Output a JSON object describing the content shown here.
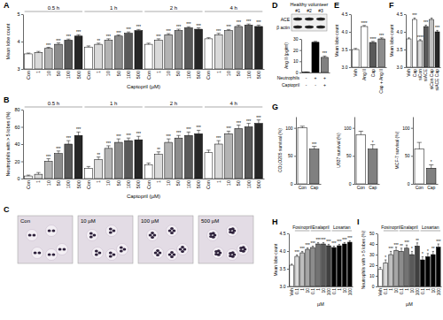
{
  "chart_data": [
    {
      "type": "bar",
      "panel": "A",
      "y_label": "Mean lobe count",
      "x_label": "Captopril (µM)",
      "categories": [
        "Con",
        "1",
        "10",
        "50",
        "100",
        "500",
        "Con",
        "1",
        "10",
        "50",
        "100",
        "500",
        "Con",
        "1",
        "10",
        "50",
        "100",
        "500",
        "Con",
        "1",
        "10",
        "50",
        "100",
        "500"
      ],
      "groups": [
        "0.5 h",
        "0.5 h",
        "0.5 h",
        "0.5 h",
        "0.5 h",
        "0.5 h",
        "1 h",
        "1 h",
        "1 h",
        "1 h",
        "1 h",
        "1 h",
        "2 h",
        "2 h",
        "2 h",
        "2 h",
        "2 h",
        "2 h",
        "4 h",
        "4 h",
        "4 h",
        "4 h",
        "4 h",
        "4 h"
      ],
      "values": [
        3.55,
        3.6,
        3.75,
        3.9,
        4.05,
        4.2,
        3.8,
        3.9,
        4.05,
        4.2,
        4.3,
        4.4,
        3.9,
        4.05,
        4.25,
        4.4,
        4.5,
        4.45,
        4.1,
        4.25,
        4.4,
        4.55,
        4.6,
        4.55
      ],
      "errors": [
        0.03,
        0.04,
        0.04,
        0.05,
        0.04,
        0.05,
        0.04,
        0.04,
        0.05,
        0.04,
        0.05,
        0.04,
        0.04,
        0.05,
        0.04,
        0.05,
        0.04,
        0.05,
        0.04,
        0.05,
        0.04,
        0.05,
        0.04,
        0.05
      ],
      "significance": [
        null,
        null,
        "***",
        "***",
        "***",
        "***",
        null,
        "**",
        "***",
        "***",
        "***",
        "***",
        null,
        "***",
        "***",
        "***",
        "***",
        "***",
        null,
        "***",
        "***",
        "***",
        "***",
        "***"
      ],
      "colors": [
        "#ffffff",
        "#d9d9d9",
        "#b3b3b3",
        "#8c8c8c",
        "#595959",
        "#262626",
        "#ffffff",
        "#d9d9d9",
        "#b3b3b3",
        "#8c8c8c",
        "#595959",
        "#262626",
        "#ffffff",
        "#d9d9d9",
        "#b3b3b3",
        "#8c8c8c",
        "#595959",
        "#262626",
        "#ffffff",
        "#d9d9d9",
        "#b3b3b3",
        "#8c8c8c",
        "#595959",
        "#262626"
      ],
      "ylim": [
        3,
        5
      ],
      "yticks": [
        3,
        4,
        5
      ]
    },
    {
      "type": "bar",
      "panel": "B",
      "y_label": "Neutrophils with > 5 lobes (%)",
      "x_label": "Captopril (µM)",
      "categories": [
        "Con",
        "1",
        "10",
        "50",
        "100",
        "500",
        "Con",
        "1",
        "10",
        "50",
        "100",
        "500",
        "Con",
        "1",
        "10",
        "50",
        "100",
        "500",
        "Con",
        "1",
        "10",
        "50",
        "100",
        "500"
      ],
      "groups": [
        "0.5 h",
        "0.5 h",
        "0.5 h",
        "0.5 h",
        "0.5 h",
        "0.5 h",
        "1 h",
        "1 h",
        "1 h",
        "1 h",
        "1 h",
        "1 h",
        "2 h",
        "2 h",
        "2 h",
        "2 h",
        "2 h",
        "2 h",
        "4 h",
        "4 h",
        "4 h",
        "4 h",
        "4 h",
        "4 h"
      ],
      "values": [
        3,
        5,
        20,
        29,
        40,
        50,
        12,
        22,
        35,
        42,
        44,
        45,
        16,
        28,
        42,
        47,
        50,
        52,
        30,
        40,
        52,
        58,
        60,
        64
      ],
      "errors": [
        1,
        2,
        3,
        3,
        4,
        4,
        2,
        3,
        3,
        4,
        3,
        4,
        2,
        3,
        4,
        3,
        4,
        4,
        3,
        4,
        3,
        4,
        4,
        4
      ],
      "significance": [
        null,
        null,
        "***",
        "***",
        "***",
        "***",
        null,
        "**",
        "***",
        "***",
        "***",
        "***",
        null,
        "**",
        "***",
        "***",
        "***",
        "***",
        null,
        "***",
        "***",
        "***",
        "***",
        "***"
      ],
      "colors": [
        "#ffffff",
        "#d9d9d9",
        "#b3b3b3",
        "#8c8c8c",
        "#595959",
        "#262626",
        "#ffffff",
        "#d9d9d9",
        "#b3b3b3",
        "#8c8c8c",
        "#595959",
        "#262626",
        "#ffffff",
        "#d9d9d9",
        "#b3b3b3",
        "#8c8c8c",
        "#595959",
        "#262626",
        "#ffffff",
        "#d9d9d9",
        "#b3b3b3",
        "#8c8c8c",
        "#595959",
        "#262626"
      ],
      "ylim": [
        0,
        80
      ],
      "yticks": [
        0,
        20,
        40,
        60,
        80
      ]
    },
    {
      "type": "bar",
      "panel": "D",
      "y_label": "Ang II (pg/ml)",
      "conditions": {
        "rows": [
          {
            "label": "Neutrophils",
            "values": [
              "-",
              "+",
              "+"
            ]
          },
          {
            "label": "Captopril",
            "values": [
              "-",
              "-",
              "+"
            ]
          }
        ]
      },
      "values": [
        0.3,
        27,
        13.5
      ],
      "errors": [
        0.2,
        0.8,
        1.2
      ],
      "significance": [
        null,
        null,
        "***"
      ],
      "colors": [
        "#ffffff",
        "#000000",
        "#808080"
      ],
      "ylim": [
        0,
        30
      ],
      "yticks": [
        0,
        10,
        20,
        30
      ]
    },
    {
      "type": "bar",
      "panel": "E",
      "y_label": "Mean lobe count",
      "categories": [
        "Veh",
        "Ang II",
        "Cap",
        "Cap + Ang II"
      ],
      "values": [
        3.5,
        4.15,
        3.7,
        3.8
      ],
      "errors": [
        0.03,
        0.03,
        0.03,
        0.03
      ],
      "significance": [
        null,
        "****",
        "****",
        "***"
      ],
      "colors": [
        "#ffffff",
        "#ffffff",
        "#595959",
        "#8c8c8c"
      ],
      "ylim": [
        3,
        4.5
      ],
      "yticks": [
        {
          "value": 3,
          "label": "3.0"
        },
        3.5,
        {
          "value": 4,
          "label": "4.0"
        },
        4.5
      ]
    },
    {
      "type": "bar",
      "panel": "F",
      "y_label": "Mean lobe count",
      "categories": [
        "Veh",
        "Cap",
        "siCon",
        "siACE",
        "siCon Cap",
        "siACE Cap"
      ],
      "values": [
        3.8,
        4.35,
        3.75,
        4.15,
        4.35,
        4.0
      ],
      "errors": [
        0.03,
        0.04,
        0.03,
        0.04,
        0.04,
        0.04
      ],
      "significance": [
        null,
        "***",
        "****",
        "***",
        null,
        "***"
      ],
      "colors": [
        "#ffffff",
        "#ffffff",
        "#d9d9d9",
        "#595959",
        "#bfbfbf",
        "#262626"
      ],
      "ylim": [
        3,
        4.5
      ],
      "yticks": [
        {
          "value": 3,
          "label": "3.0"
        },
        3.5,
        {
          "value": 4,
          "label": "4.0"
        },
        4.5
      ]
    },
    {
      "type": "bar",
      "panel": "G",
      "y_label": "COLO205 survival (%)",
      "categories": [
        "Con",
        "Cap"
      ],
      "values": [
        100,
        62
      ],
      "errors": [
        3,
        5
      ],
      "significance": [
        null,
        "***"
      ],
      "colors": [
        "#ffffff",
        "#808080"
      ],
      "ylim": [
        0,
        120
      ],
      "yticks": [
        0,
        50,
        100
      ]
    },
    {
      "type": "bar",
      "y_label": "U937 survival (%)",
      "categories": [
        "Con",
        "Cap"
      ],
      "values": [
        88,
        62
      ],
      "errors": [
        6,
        8
      ],
      "significance": [
        null,
        "*"
      ],
      "colors": [
        "#ffffff",
        "#808080"
      ],
      "ylim": [
        0,
        120
      ],
      "yticks": [
        0,
        50,
        100
      ]
    },
    {
      "type": "bar",
      "y_label": "MCF-7 survival (%)",
      "categories": [
        "Con",
        "Cap"
      ],
      "values": [
        62,
        28
      ],
      "errors": [
        12,
        6
      ],
      "significance": [
        null,
        "*"
      ],
      "colors": [
        "#ffffff",
        "#808080"
      ],
      "ylim": [
        0,
        120
      ],
      "yticks": [
        0,
        50,
        100
      ]
    },
    {
      "type": "bar",
      "panel": "H",
      "y_label": "Mean lobe count",
      "x_label": "µM",
      "categories": [
        "Veh",
        "0.1",
        "1",
        "10",
        "0.1",
        "1",
        "10",
        "100",
        "0.1",
        "1",
        "10",
        "100"
      ],
      "groups": [
        null,
        "Fosinopril",
        "Fosinopril",
        "Fosinopril",
        "Enalapril",
        "Enalapril",
        "Enalapril",
        "Enalapril",
        "Losartan",
        "Losartan",
        "Losartan",
        "Losartan"
      ],
      "values": [
        3.6,
        3.85,
        3.95,
        4.05,
        4.1,
        4.2,
        4.2,
        4.15,
        4.1,
        4.15,
        4.2,
        4.25
      ],
      "errors": [
        0.03,
        0.04,
        0.04,
        0.04,
        0.04,
        0.04,
        0.04,
        0.04,
        0.04,
        0.04,
        0.04,
        0.04
      ],
      "significance": [
        null,
        "***",
        "***",
        "***",
        "***",
        "***",
        "***",
        "***",
        "***",
        "***",
        "***",
        "***"
      ],
      "colors": [
        "#ffffff",
        "#d9d9d9",
        "#bfbfbf",
        "#a6a6a6",
        "#8c8c8c",
        "#737373",
        "#595959",
        "#404040",
        "#000000",
        "#000000",
        "#000000",
        "#000000"
      ],
      "ylim": [
        3,
        4.5
      ],
      "yticks": [
        {
          "value": 3,
          "label": "3.0"
        },
        3.5,
        {
          "value": 4,
          "label": "4.0"
        },
        4.5
      ]
    },
    {
      "type": "bar",
      "panel": "I",
      "y_label": "Neutrophils with > 5 lobes (%)",
      "x_label": "µM",
      "categories": [
        "Veh",
        "0.1",
        "1",
        "10",
        "0.1",
        "1",
        "10",
        "100",
        "0.1",
        "1",
        "10",
        "100"
      ],
      "groups": [
        null,
        "Fosinopril",
        "Fosinopril",
        "Fosinopril",
        "Enalapril",
        "Enalapril",
        "Enalapril",
        "Enalapril",
        "Losartan",
        "Losartan",
        "Losartan",
        "Losartan"
      ],
      "values": [
        16,
        22,
        30,
        34,
        33,
        36,
        30,
        38,
        25,
        28,
        30,
        37
      ],
      "errors": [
        2,
        3,
        3,
        3,
        3,
        3,
        3,
        3,
        3,
        3,
        3,
        3
      ],
      "significance": [
        null,
        "*",
        "***",
        "***",
        "**",
        "***",
        "*",
        "**",
        "*",
        "*",
        "**",
        "***"
      ],
      "colors": [
        "#ffffff",
        "#d9d9d9",
        "#bfbfbf",
        "#a6a6a6",
        "#8c8c8c",
        "#737373",
        "#595959",
        "#404040",
        "#000000",
        "#000000",
        "#000000",
        "#000000"
      ],
      "ylim": [
        0,
        50
      ],
      "yticks": [
        0,
        10,
        20,
        30,
        40,
        50
      ]
    }
  ],
  "micrographs": {
    "panel": "C",
    "labels": [
      "Con",
      "10 µM",
      "100 µM",
      "500 µM"
    ]
  },
  "blot": {
    "title": "Healthy volunteer",
    "lanes": [
      "#1",
      "#2",
      "#3"
    ],
    "rows": [
      "ACE",
      "β actin"
    ]
  }
}
